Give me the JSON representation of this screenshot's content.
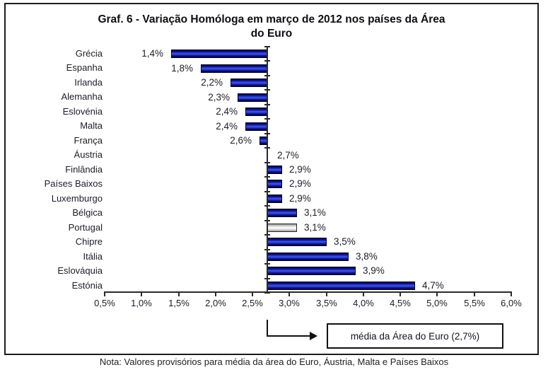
{
  "chart_data": {
    "type": "bar",
    "orientation": "horizontal",
    "title": "Graf. 6 - Variação Homóloga em março de 2012 nos países da Área do Euro",
    "categories": [
      "Grécia",
      "Espanha",
      "Irlanda",
      "Alemanha",
      "Eslovénia",
      "Malta",
      "França",
      "Áustria",
      "Finlândia",
      "Países Baixos",
      "Luxemburgo",
      "Bélgica",
      "Portugal",
      "Chipre",
      "Itália",
      "Eslováquia",
      "Estónia"
    ],
    "values": [
      1.4,
      1.8,
      2.2,
      2.3,
      2.4,
      2.4,
      2.6,
      2.7,
      2.9,
      2.9,
      2.9,
      3.1,
      3.1,
      3.5,
      3.8,
      3.9,
      4.7
    ],
    "value_labels": [
      "1,4%",
      "1,8%",
      "2,2%",
      "2,3%",
      "2,4%",
      "2,4%",
      "2,6%",
      "2,7%",
      "2,9%",
      "2,9%",
      "2,9%",
      "3,1%",
      "3,1%",
      "3,5%",
      "3,8%",
      "3,9%",
      "4,7%"
    ],
    "baseline": 2.7,
    "xlim": [
      0.5,
      6.0
    ],
    "x_tick_step": 0.5,
    "x_ticks": [
      "0,5%",
      "1,0%",
      "1,5%",
      "2,0%",
      "2,5%",
      "3,0%",
      "3,5%",
      "4,0%",
      "4,5%",
      "5,0%",
      "5,5%",
      "6,0%"
    ],
    "highlight_category": "Portugal",
    "bar_color": "#2d46d6",
    "bar_edge_color": "#00002a",
    "highlight_color": "#ffffff",
    "annotation": "média da Área do Euro (2,7%)",
    "note": "Nota: Valores provisórios para média da área do Euro, Áustria, Malta e Países Baixos",
    "grid": false,
    "legend": false
  }
}
